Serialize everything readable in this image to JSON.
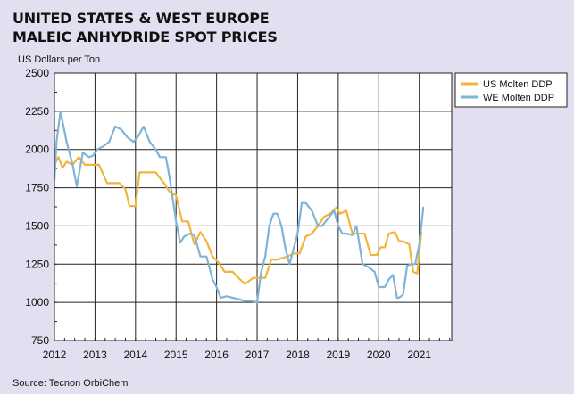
{
  "title_line1": "UNITED STATES & WEST EUROPE",
  "title_line2": "MALEIC ANHYDRIDE SPOT PRICES",
  "source": "Source: Tecnon OrbiChem",
  "colors": {
    "us": "#f2b43c",
    "we": "#7eb4d8",
    "background": "#e4dff0",
    "plot_bg": "#ffffff",
    "grid": "#222222"
  },
  "chart_data": {
    "type": "line",
    "title": "UNITED STATES & WEST EUROPE MALEIC ANHYDRIDE SPOT PRICES",
    "ylabel": "US Dollars per Ton",
    "xlabel": "",
    "xlim": [
      2012,
      2021.8
    ],
    "ylim": [
      750,
      2500
    ],
    "x_ticks": [
      2012,
      2013,
      2014,
      2015,
      2016,
      2017,
      2018,
      2019,
      2020,
      2021
    ],
    "y_ticks": [
      750,
      1000,
      1250,
      1500,
      1750,
      2000,
      2250,
      2500
    ],
    "grid": true,
    "legend": [
      "US Molten DDP",
      "WE Molten DDP"
    ],
    "legend_position": "top-right",
    "series": [
      {
        "name": "US Molten DDP",
        "color": "#f2b43c",
        "x": [
          2012.0,
          2012.1,
          2012.2,
          2012.3,
          2012.45,
          2012.6,
          2012.75,
          2012.9,
          2013.1,
          2013.3,
          2013.45,
          2013.6,
          2013.75,
          2013.85,
          2014.0,
          2014.1,
          2014.3,
          2014.5,
          2014.7,
          2014.85,
          2015.0,
          2015.15,
          2015.3,
          2015.45,
          2015.6,
          2015.75,
          2015.9,
          2016.05,
          2016.2,
          2016.4,
          2016.5,
          2016.7,
          2016.9,
          2017.05,
          2017.2,
          2017.35,
          2017.5,
          2017.75,
          2017.9,
          2018.05,
          2018.2,
          2018.35,
          2018.5,
          2018.65,
          2018.8,
          2018.95,
          2019.05,
          2019.2,
          2019.35,
          2019.5,
          2019.65,
          2019.8,
          2019.95,
          2020.05,
          2020.15,
          2020.25,
          2020.4,
          2020.5,
          2020.6,
          2020.75,
          2020.85,
          2020.95,
          2021.05
        ],
        "y": [
          1900,
          1950,
          1880,
          1920,
          1900,
          1950,
          1900,
          1900,
          1900,
          1780,
          1780,
          1780,
          1740,
          1630,
          1630,
          1850,
          1850,
          1850,
          1780,
          1720,
          1700,
          1530,
          1530,
          1380,
          1460,
          1400,
          1300,
          1260,
          1200,
          1200,
          1170,
          1120,
          1160,
          1160,
          1160,
          1280,
          1280,
          1300,
          1320,
          1320,
          1430,
          1450,
          1500,
          1560,
          1580,
          1620,
          1580,
          1600,
          1450,
          1450,
          1450,
          1310,
          1310,
          1360,
          1360,
          1450,
          1460,
          1400,
          1400,
          1380,
          1200,
          1190,
          1460
        ]
      },
      {
        "name": "WE Molten DDP",
        "color": "#7eb4d8",
        "x": [
          2012.0,
          2012.05,
          2012.15,
          2012.3,
          2012.45,
          2012.55,
          2012.7,
          2012.85,
          2012.95,
          2013.05,
          2013.2,
          2013.35,
          2013.5,
          2013.65,
          2013.8,
          2013.95,
          2014.05,
          2014.2,
          2014.35,
          2014.5,
          2014.6,
          2014.75,
          2014.85,
          2015.0,
          2015.1,
          2015.2,
          2015.35,
          2015.45,
          2015.6,
          2015.75,
          2015.9,
          2016.0,
          2016.1,
          2016.25,
          2016.4,
          2016.55,
          2016.7,
          2016.85,
          2017.0,
          2017.1,
          2017.2,
          2017.3,
          2017.4,
          2017.5,
          2017.6,
          2017.7,
          2017.8,
          2017.9,
          2018.0,
          2018.1,
          2018.2,
          2018.35,
          2018.5,
          2018.6,
          2018.75,
          2018.9,
          2019.0,
          2019.1,
          2019.2,
          2019.35,
          2019.45,
          2019.6,
          2019.75,
          2019.9,
          2020.0,
          2020.15,
          2020.25,
          2020.35,
          2020.45,
          2020.5,
          2020.6,
          2020.7,
          2020.8,
          2020.9,
          2021.0,
          2021.1
        ],
        "y": [
          1800,
          2050,
          2250,
          2050,
          1900,
          1760,
          1980,
          1950,
          1960,
          2000,
          2020,
          2050,
          2150,
          2130,
          2080,
          2050,
          2080,
          2150,
          2050,
          2000,
          1950,
          1950,
          1800,
          1530,
          1390,
          1430,
          1450,
          1440,
          1300,
          1300,
          1150,
          1100,
          1030,
          1040,
          1030,
          1020,
          1010,
          1010,
          1000,
          1200,
          1300,
          1500,
          1580,
          1580,
          1500,
          1350,
          1250,
          1350,
          1450,
          1650,
          1650,
          1600,
          1500,
          1500,
          1550,
          1600,
          1500,
          1450,
          1450,
          1440,
          1500,
          1250,
          1230,
          1200,
          1100,
          1100,
          1150,
          1180,
          1030,
          1030,
          1050,
          1240,
          1250,
          1250,
          1380,
          1620
        ]
      }
    ]
  }
}
